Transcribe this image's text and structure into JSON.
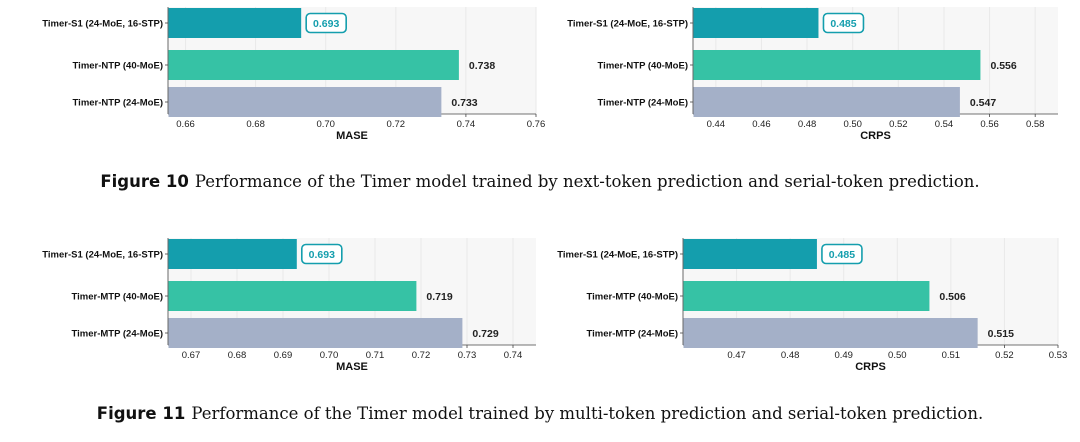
{
  "colors": {
    "s1": "#149EAD",
    "mid": "#36C2A5",
    "base": "#A4B0C8",
    "panel_bg": "#F7F7F7",
    "grid": "#E9E9E9",
    "badge": "#149EAD"
  },
  "figures": [
    {
      "label": "Figure 10",
      "caption": "Performance of the Timer model trained by next-token prediction and serial-token prediction."
    },
    {
      "label": "Figure 11",
      "caption": "Performance of the Timer model trained by multi-token prediction and serial-token prediction."
    }
  ],
  "chart_data": [
    {
      "type": "bar",
      "orientation": "horizontal",
      "categories": [
        "Timer-S1 (24-MoE, 16-STP)",
        "Timer-NTP (40-MoE)",
        "Timer-NTP (24-MoE)"
      ],
      "values": [
        0.693,
        0.738,
        0.733
      ],
      "value_labels": [
        "0.693",
        "0.738",
        "0.733"
      ],
      "xlabel": "MASE",
      "xlim": [
        0.655,
        0.76
      ],
      "ticks": [
        "0.66",
        "0.68",
        "0.70",
        "0.72",
        "0.74",
        "0.76"
      ],
      "grid": true
    },
    {
      "type": "bar",
      "orientation": "horizontal",
      "categories": [
        "Timer-S1 (24-MoE, 16-STP)",
        "Timer-NTP (40-MoE)",
        "Timer-NTP (24-MoE)"
      ],
      "values": [
        0.485,
        0.556,
        0.547
      ],
      "value_labels": [
        "0.485",
        "0.556",
        "0.547"
      ],
      "xlabel": "CRPS",
      "xlim": [
        0.43,
        0.59
      ],
      "ticks": [
        "0.44",
        "0.46",
        "0.48",
        "0.50",
        "0.52",
        "0.54",
        "0.56",
        "0.58"
      ],
      "grid": true
    },
    {
      "type": "bar",
      "orientation": "horizontal",
      "categories": [
        "Timer-S1 (24-MoE, 16-STP)",
        "Timer-MTP (40-MoE)",
        "Timer-MTP (24-MoE)"
      ],
      "values": [
        0.693,
        0.719,
        0.729
      ],
      "value_labels": [
        "0.693",
        "0.719",
        "0.729"
      ],
      "xlabel": "MASE",
      "xlim": [
        0.665,
        0.745
      ],
      "ticks": [
        "0.67",
        "0.68",
        "0.69",
        "0.70",
        "0.71",
        "0.72",
        "0.73",
        "0.74"
      ],
      "grid": true
    },
    {
      "type": "bar",
      "orientation": "horizontal",
      "categories": [
        "Timer-S1 (24-MoE, 16-STP)",
        "Timer-MTP (40-MoE)",
        "Timer-MTP (24-MoE)"
      ],
      "values": [
        0.485,
        0.506,
        0.515
      ],
      "value_labels": [
        "0.485",
        "0.506",
        "0.515"
      ],
      "xlabel": "CRPS",
      "xlim": [
        0.46,
        0.53
      ],
      "ticks": [
        "0.47",
        "0.48",
        "0.49",
        "0.50",
        "0.51",
        "0.52",
        "0.53"
      ],
      "grid": true
    }
  ]
}
